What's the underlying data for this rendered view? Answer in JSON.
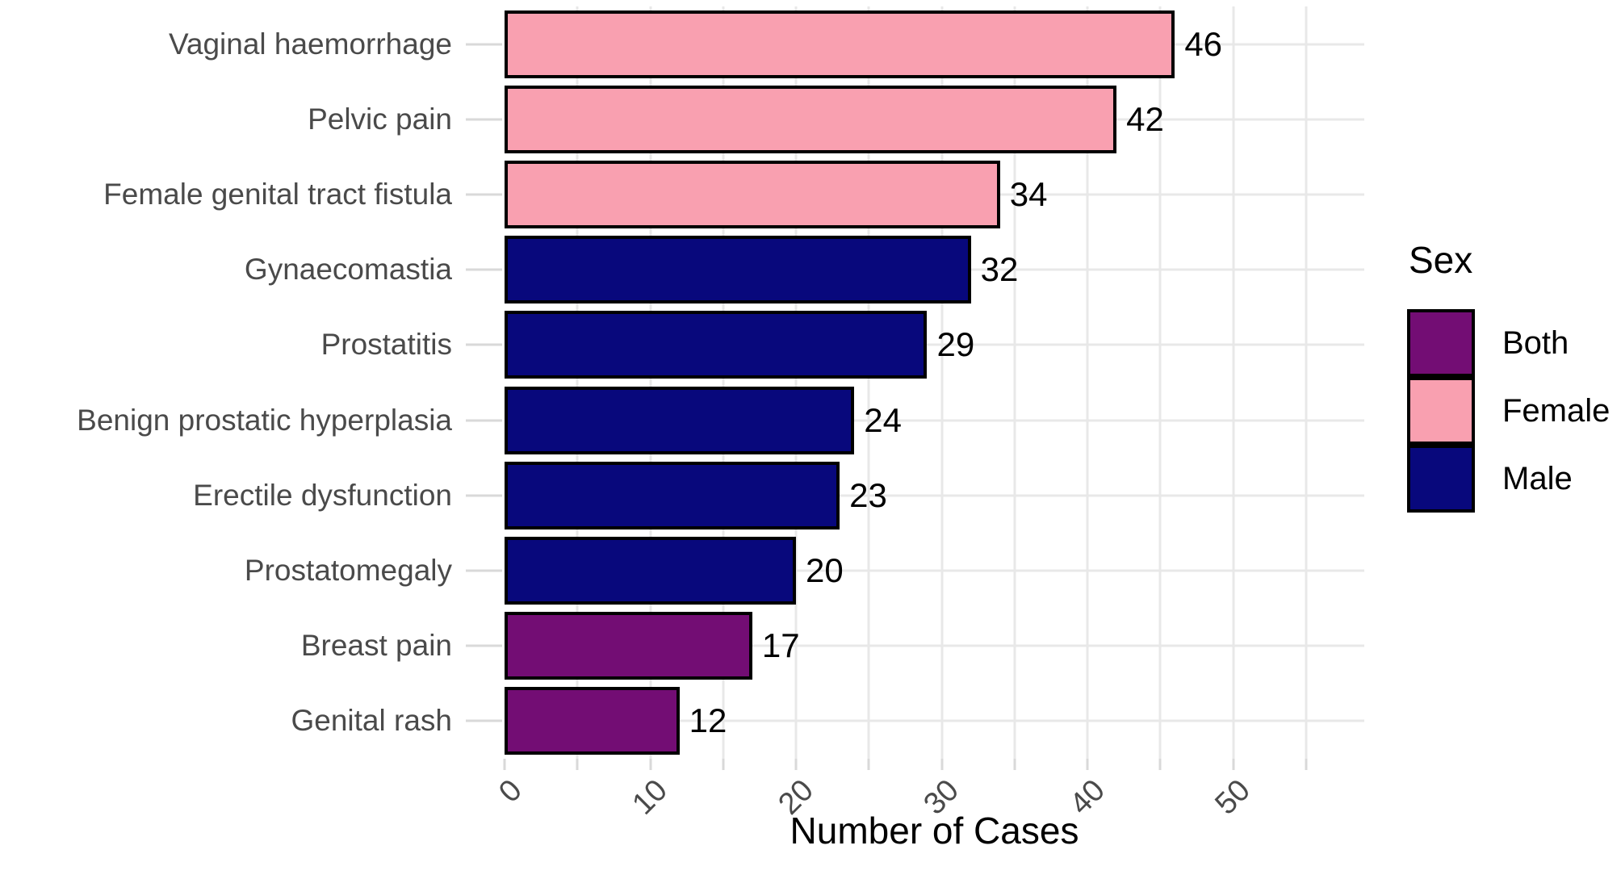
{
  "chart_data": {
    "type": "bar",
    "orientation": "horizontal",
    "xlabel": "Number of Cases",
    "ylabel": "",
    "categories": [
      "Vaginal haemorrhage",
      "Pelvic pain",
      "Female genital tract fistula",
      "Gynaecomastia",
      "Prostatitis",
      "Benign prostatic hyperplasia",
      "Erectile dysfunction",
      "Prostatomegaly",
      "Breast pain",
      "Genital rash"
    ],
    "values": [
      46,
      42,
      34,
      32,
      29,
      24,
      23,
      20,
      17,
      12
    ],
    "groups": [
      "Female",
      "Female",
      "Female",
      "Male",
      "Male",
      "Male",
      "Male",
      "Male",
      "Both",
      "Both"
    ],
    "x_ticks": [
      0,
      10,
      20,
      30,
      40,
      50
    ],
    "xlim": [
      0,
      59
    ],
    "grid_interval": 5,
    "grid_max": 55,
    "grid_on": true,
    "colors": {
      "Both": "#730d74",
      "Female": "#f9a0b0",
      "Male": "#08087c"
    },
    "grid_color": "#e8e8e8",
    "tick_color": "#d9d9d9",
    "axis_text_color": "#4a4a4a",
    "legend": {
      "title": "Sex",
      "position": "right",
      "entries": [
        {
          "label": "Both",
          "color": "#730d74"
        },
        {
          "label": "Female",
          "color": "#f9a0b0"
        },
        {
          "label": "Male",
          "color": "#08087c"
        }
      ]
    }
  }
}
